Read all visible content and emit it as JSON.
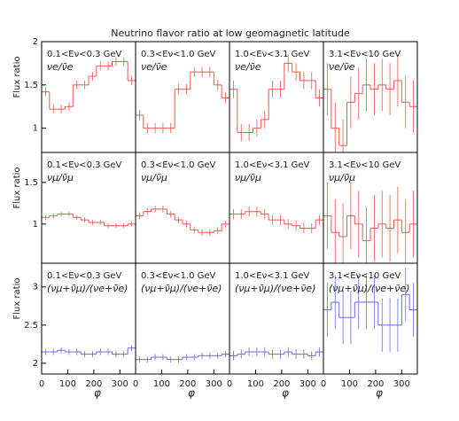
{
  "title": "Neutrino flavor ratio at low geomagnetic latitude",
  "chart_data": [
    {
      "type": "histogram",
      "energy_label": "0.1<Eν<0.3 GeV",
      "ratio_label": "νe/ν̄e",
      "ylabel": "Flux ratio",
      "color": "#e8584f",
      "bins": [
        0,
        30,
        60,
        90,
        120,
        150,
        180,
        210,
        240,
        270,
        300,
        330,
        360
      ],
      "values": [
        1.42,
        1.22,
        1.22,
        1.25,
        1.5,
        1.5,
        1.6,
        1.72,
        1.72,
        1.77,
        1.77,
        1.55
      ],
      "errors": [
        0.05,
        0.05,
        0.05,
        0.05,
        0.05,
        0.05,
        0.05,
        0.05,
        0.05,
        0.05,
        0.05,
        0.05
      ],
      "xlim": [
        0,
        360
      ],
      "ylim": [
        0.72,
        2.0
      ],
      "yticks": [
        1,
        1.5,
        2
      ]
    },
    {
      "type": "histogram",
      "energy_label": "0.3<Eν<1.0 GeV",
      "ratio_label": "νe/ν̄e",
      "color": "#e8584f",
      "bins": [
        0,
        30,
        60,
        90,
        120,
        150,
        180,
        210,
        240,
        270,
        300,
        330,
        360
      ],
      "values": [
        1.15,
        1.0,
        1.0,
        1.0,
        1.0,
        1.45,
        1.45,
        1.65,
        1.65,
        1.65,
        1.5,
        1.35
      ],
      "errors": [
        0.06,
        0.06,
        0.06,
        0.06,
        0.06,
        0.06,
        0.06,
        0.06,
        0.06,
        0.06,
        0.06,
        0.06
      ],
      "xlim": [
        0,
        360
      ],
      "ylim": [
        0.72,
        2.0
      ]
    },
    {
      "type": "histogram",
      "energy_label": "1.0<Eν<3.1 GeV",
      "ratio_label": "νe/ν̄e",
      "color": "#e8584f",
      "bins": [
        0,
        30,
        60,
        90,
        120,
        150,
        180,
        210,
        240,
        270,
        300,
        330,
        360
      ],
      "values": [
        1.45,
        0.95,
        0.95,
        1.0,
        1.1,
        1.45,
        1.45,
        1.75,
        1.65,
        1.55,
        1.55,
        1.35
      ],
      "errors": [
        0.1,
        0.1,
        0.1,
        0.1,
        0.1,
        0.1,
        0.1,
        0.1,
        0.1,
        0.1,
        0.1,
        0.1
      ],
      "xlim": [
        0,
        360
      ],
      "ylim": [
        0.72,
        2.0
      ]
    },
    {
      "type": "histogram",
      "energy_label": "3.1<Eν<10 GeV",
      "ratio_label": "νe/ν̄e",
      "color": "#e8584f",
      "bins": [
        0,
        30,
        60,
        90,
        120,
        150,
        180,
        210,
        240,
        270,
        300,
        330,
        360
      ],
      "values": [
        1.45,
        1.0,
        0.8,
        1.3,
        1.4,
        1.5,
        1.45,
        1.5,
        1.45,
        1.55,
        1.3,
        1.25
      ],
      "errors": [
        0.3,
        0.3,
        0.3,
        0.3,
        0.3,
        0.3,
        0.3,
        0.3,
        0.3,
        0.3,
        0.3,
        0.3
      ],
      "xlim": [
        0,
        360
      ],
      "ylim": [
        0.72,
        2.0
      ]
    },
    {
      "type": "histogram",
      "energy_label": "0.1<Eν<0.3 GeV",
      "ratio_label": "νμ/ν̄μ",
      "ylabel": "Flux ratio",
      "color": "#e8584f",
      "bins": [
        0,
        30,
        60,
        90,
        120,
        150,
        180,
        210,
        240,
        270,
        300,
        330,
        360
      ],
      "values": [
        1.08,
        1.1,
        1.12,
        1.12,
        1.08,
        1.05,
        1.02,
        1.02,
        0.98,
        0.98,
        0.98,
        1.0
      ],
      "errors": [
        0.03,
        0.03,
        0.03,
        0.03,
        0.03,
        0.03,
        0.03,
        0.03,
        0.03,
        0.03,
        0.03,
        0.03
      ],
      "xlim": [
        0,
        360
      ],
      "ylim": [
        0.53,
        1.86
      ],
      "yticks": [
        1,
        1.5
      ]
    },
    {
      "type": "histogram",
      "energy_label": "0.3<Eν<1.0 GeV",
      "ratio_label": "νμ/ν̄μ",
      "color": "#e8584f",
      "bins": [
        0,
        30,
        60,
        90,
        120,
        150,
        180,
        210,
        240,
        270,
        300,
        330,
        360
      ],
      "values": [
        1.1,
        1.15,
        1.18,
        1.18,
        1.12,
        1.05,
        1.0,
        0.93,
        0.9,
        0.9,
        0.92,
        1.0
      ],
      "errors": [
        0.04,
        0.04,
        0.04,
        0.04,
        0.04,
        0.04,
        0.04,
        0.04,
        0.04,
        0.04,
        0.04,
        0.04
      ],
      "xlim": [
        0,
        360
      ],
      "ylim": [
        0.53,
        1.86
      ]
    },
    {
      "type": "histogram",
      "energy_label": "1.0<Eν<3.1 GeV",
      "ratio_label": "νμ/ν̄μ",
      "color": "#e8584f",
      "bins": [
        0,
        30,
        60,
        90,
        120,
        150,
        180,
        210,
        240,
        270,
        300,
        330,
        360
      ],
      "values": [
        1.12,
        1.12,
        1.15,
        1.15,
        1.12,
        1.05,
        1.05,
        1.0,
        0.98,
        0.95,
        0.95,
        1.05
      ],
      "errors": [
        0.06,
        0.06,
        0.06,
        0.06,
        0.06,
        0.06,
        0.06,
        0.06,
        0.06,
        0.06,
        0.06,
        0.06
      ],
      "xlim": [
        0,
        360
      ],
      "ylim": [
        0.53,
        1.86
      ]
    },
    {
      "type": "histogram",
      "energy_label": "3.1<Eν<10 GeV",
      "ratio_label": "νμ/ν̄μ",
      "color": "#e8584f",
      "bins": [
        0,
        30,
        60,
        90,
        120,
        150,
        180,
        210,
        240,
        270,
        300,
        330,
        360
      ],
      "values": [
        1.1,
        0.9,
        0.85,
        1.1,
        1.0,
        0.8,
        0.95,
        1.0,
        0.95,
        1.05,
        0.9,
        1.0
      ],
      "errors": [
        0.4,
        0.4,
        0.4,
        0.4,
        0.4,
        0.4,
        0.4,
        0.4,
        0.4,
        0.4,
        0.4,
        0.4
      ],
      "xlim": [
        0,
        360
      ],
      "ylim": [
        0.53,
        1.86
      ]
    },
    {
      "type": "histogram",
      "energy_label": "0.1<Eν<0.3 GeV",
      "ratio_label": "(νμ+ν̄μ)/(νe+ν̄e)",
      "ylabel": "Flux ratio",
      "xlabel": "φ",
      "color": "#6b6bdc",
      "bins": [
        0,
        30,
        60,
        90,
        120,
        150,
        180,
        210,
        240,
        270,
        300,
        330,
        360
      ],
      "values": [
        2.15,
        2.15,
        2.17,
        2.15,
        2.15,
        2.12,
        2.12,
        2.15,
        2.15,
        2.12,
        2.12,
        2.2
      ],
      "errors": [
        0.04,
        0.04,
        0.04,
        0.04,
        0.04,
        0.04,
        0.04,
        0.04,
        0.04,
        0.04,
        0.04,
        0.04
      ],
      "xlim": [
        0,
        360
      ],
      "ylim": [
        1.86,
        3.31
      ],
      "xticks": [
        0,
        100,
        200,
        300
      ],
      "yticks": [
        2,
        2.5,
        3
      ]
    },
    {
      "type": "histogram",
      "energy_label": "0.3<Eν<1.0 GeV",
      "ratio_label": "(νμ+ν̄μ)/(νe+ν̄e)",
      "xlabel": "φ",
      "color": "#6b6bdc",
      "bins": [
        0,
        30,
        60,
        90,
        120,
        150,
        180,
        210,
        240,
        270,
        300,
        330,
        360
      ],
      "values": [
        2.05,
        2.05,
        2.08,
        2.08,
        2.05,
        2.05,
        2.08,
        2.08,
        2.1,
        2.1,
        2.1,
        2.12
      ],
      "errors": [
        0.04,
        0.04,
        0.04,
        0.04,
        0.04,
        0.04,
        0.04,
        0.04,
        0.04,
        0.04,
        0.04,
        0.04
      ],
      "xlim": [
        0,
        360
      ],
      "ylim": [
        1.86,
        3.31
      ],
      "xticks": [
        0,
        100,
        200,
        300
      ]
    },
    {
      "type": "histogram",
      "energy_label": "1.0<Eν<3.1 GeV",
      "ratio_label": "(νμ+ν̄μ)/(νe+ν̄e)",
      "xlabel": "φ",
      "color": "#6b6bdc",
      "bins": [
        0,
        30,
        60,
        90,
        120,
        150,
        180,
        210,
        240,
        270,
        300,
        330,
        360
      ],
      "values": [
        2.1,
        2.12,
        2.15,
        2.15,
        2.15,
        2.12,
        2.12,
        2.15,
        2.12,
        2.12,
        2.1,
        2.15
      ],
      "errors": [
        0.06,
        0.06,
        0.06,
        0.06,
        0.06,
        0.06,
        0.06,
        0.06,
        0.06,
        0.06,
        0.06,
        0.06
      ],
      "xlim": [
        0,
        360
      ],
      "ylim": [
        1.86,
        3.31
      ],
      "xticks": [
        0,
        100,
        200,
        300
      ]
    },
    {
      "type": "histogram",
      "energy_label": "3.1<Eν<10 GeV",
      "ratio_label": "(νμ+ν̄μ)/(νe+ν̄e)",
      "xlabel": "φ",
      "color": "#6b6bdc",
      "bins": [
        0,
        30,
        60,
        90,
        120,
        150,
        180,
        210,
        240,
        270,
        300,
        330,
        360
      ],
      "values": [
        2.7,
        2.8,
        2.6,
        2.6,
        2.8,
        2.8,
        2.8,
        2.5,
        2.5,
        2.5,
        2.9,
        2.7
      ],
      "errors": [
        0.35,
        0.35,
        0.35,
        0.35,
        0.35,
        0.35,
        0.35,
        0.35,
        0.35,
        0.35,
        0.35,
        0.35
      ],
      "xlim": [
        0,
        360
      ],
      "ylim": [
        1.86,
        3.31
      ],
      "xticks": [
        0,
        100,
        200,
        300
      ]
    }
  ]
}
